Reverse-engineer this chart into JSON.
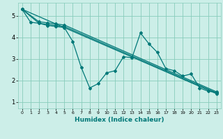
{
  "title": "",
  "xlabel": "Humidex (Indice chaleur)",
  "ylabel": "",
  "background_color": "#cceee8",
  "grid_color": "#88ccbb",
  "line_color": "#007878",
  "xlim": [
    -0.5,
    23.5
  ],
  "ylim": [
    0.7,
    5.6
  ],
  "yticks": [
    1,
    2,
    3,
    4,
    5
  ],
  "xticks": [
    0,
    1,
    2,
    3,
    4,
    5,
    6,
    7,
    8,
    9,
    10,
    11,
    12,
    13,
    14,
    15,
    16,
    17,
    18,
    19,
    20,
    21,
    22,
    23
  ],
  "series": [
    {
      "x": [
        0,
        1,
        2,
        3,
        4,
        5,
        6,
        7,
        8,
        9,
        10,
        11,
        12,
        13,
        14,
        15,
        16,
        17,
        18,
        19,
        20,
        21,
        22,
        23
      ],
      "y": [
        5.3,
        4.7,
        4.65,
        4.55,
        4.5,
        4.45,
        3.8,
        2.6,
        1.65,
        1.85,
        2.35,
        2.45,
        3.1,
        3.05,
        4.2,
        3.7,
        3.3,
        2.55,
        2.45,
        2.2,
        2.3,
        1.65,
        1.5,
        1.45
      ]
    },
    {
      "x": [
        0,
        2,
        3,
        4,
        5,
        23
      ],
      "y": [
        5.3,
        4.65,
        4.6,
        4.55,
        4.5,
        1.42
      ]
    },
    {
      "x": [
        0,
        2,
        3,
        4,
        5,
        23
      ],
      "y": [
        5.3,
        4.72,
        4.67,
        4.62,
        4.57,
        1.47
      ]
    },
    {
      "x": [
        0,
        23
      ],
      "y": [
        5.3,
        1.38
      ]
    }
  ]
}
